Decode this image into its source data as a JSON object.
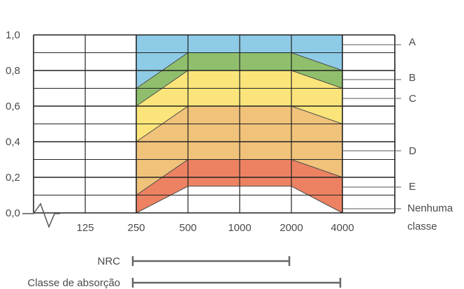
{
  "chart_data": {
    "type": "area",
    "title": "",
    "xlabel": "",
    "ylabel": "",
    "x_ticks": [
      "125",
      "250",
      "500",
      "1000",
      "2000",
      "4000"
    ],
    "y_ticks": [
      "0,0",
      "0,2",
      "0,4",
      "0,6",
      "0,8",
      "1,0"
    ],
    "ylim": [
      0,
      1.0
    ],
    "bands": [
      {
        "name": "A",
        "color": "#8ecbe6",
        "upper": [
          1.0,
          1.0,
          1.0,
          1.0
        ],
        "lower": [
          0.7,
          0.9,
          0.9,
          0.8
        ]
      },
      {
        "name": "B",
        "color": "#8fbf6c",
        "upper": [
          0.7,
          0.9,
          0.9,
          0.8
        ],
        "lower": [
          0.6,
          0.8,
          0.8,
          0.7
        ]
      },
      {
        "name": "C",
        "color": "#fbe57a",
        "upper": [
          0.6,
          0.8,
          0.8,
          0.7
        ],
        "lower": [
          0.4,
          0.6,
          0.6,
          0.5
        ]
      },
      {
        "name": "D",
        "color": "#f0c27a",
        "upper": [
          0.4,
          0.6,
          0.6,
          0.5
        ],
        "lower": [
          0.1,
          0.3,
          0.3,
          0.2
        ]
      },
      {
        "name": "E",
        "color": "#ec8262",
        "upper": [
          0.1,
          0.3,
          0.3,
          0.2
        ],
        "lower": [
          0.0,
          0.15,
          0.15,
          0.0
        ]
      }
    ],
    "band_x": [
      "250",
      "500",
      "2000",
      "4000"
    ],
    "class_labels": [
      "A",
      "B",
      "C",
      "D",
      "E",
      "Nenhuma classe"
    ],
    "ranges": [
      {
        "label": "NRC",
        "from": "250",
        "to": "2000"
      },
      {
        "label": "Classe de absorção",
        "from": "250",
        "to": "4000"
      }
    ],
    "grid": true
  }
}
